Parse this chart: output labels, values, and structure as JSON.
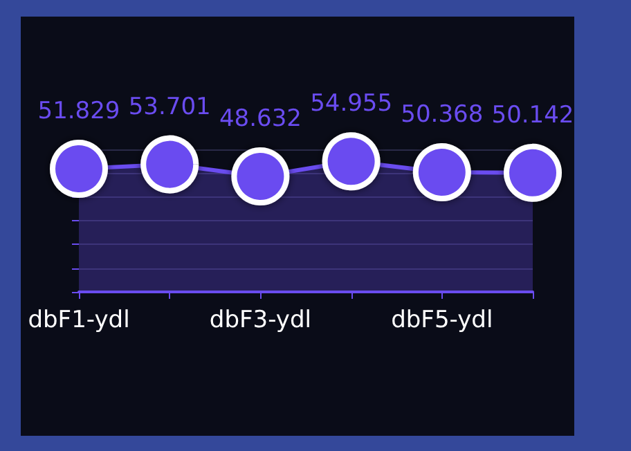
{
  "chart_data": {
    "type": "area",
    "categories": [
      "dbF1-ydl",
      null,
      "dbF3-ydl",
      null,
      "dbF5-ydl",
      null
    ],
    "series": [
      {
        "color": "#6a4cf0",
        "values": [
          51.829,
          53.701,
          48.632,
          54.955,
          50.368,
          50.142
        ]
      }
    ],
    "ylim": [
      0,
      60
    ],
    "yticks": [
      {
        "value": 0,
        "label": null
      },
      {
        "value": 10,
        "label": null
      },
      {
        "value": 20,
        "label": null
      },
      {
        "value": 30,
        "label": null
      },
      {
        "value": 40,
        "label": null
      },
      {
        "value": 50,
        "label": null
      },
      {
        "value": 60,
        "label": null
      }
    ],
    "tick_labels": "x",
    "grid": "y",
    "marker": "circle",
    "data_labels": true
  }
}
